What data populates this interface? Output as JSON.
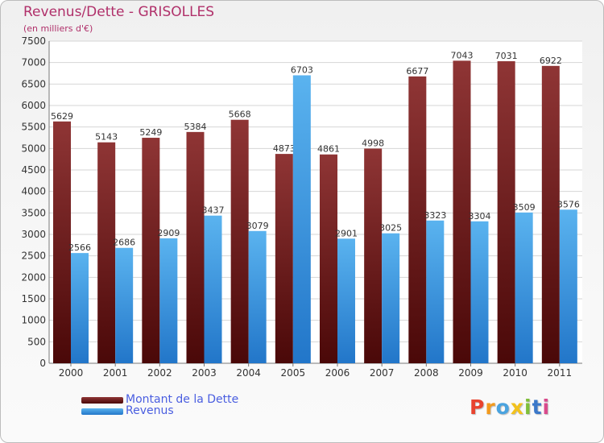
{
  "chart_data": {
    "type": "bar",
    "title": "Revenus/Dette - GRISOLLES",
    "subtitle": "(en milliers d'€)",
    "categories": [
      "2000",
      "2001",
      "2002",
      "2003",
      "2004",
      "2005",
      "2006",
      "2007",
      "2008",
      "2009",
      "2010",
      "2011"
    ],
    "series": [
      {
        "name": "Montant de la Dette",
        "color": "#7a1f1f",
        "values": [
          5629,
          5143,
          5249,
          5384,
          5668,
          4873,
          4861,
          4998,
          6677,
          7043,
          7031,
          6922
        ]
      },
      {
        "name": "Revenus",
        "color": "#3f9fe3",
        "values": [
          2566,
          2686,
          2909,
          3437,
          3079,
          6703,
          2901,
          3025,
          3323,
          3304,
          3509,
          3576
        ]
      }
    ],
    "ylim": [
      0,
      7500
    ],
    "ytick_step": 500,
    "grid": true,
    "legend_position": "bottom-left"
  },
  "logo": {
    "text": "Proxiti",
    "colors": [
      "#e8432e",
      "#f29a1d",
      "#4aa3df",
      "#f2c21d",
      "#7fbf3a",
      "#3b78c9",
      "#d94a8c"
    ]
  }
}
